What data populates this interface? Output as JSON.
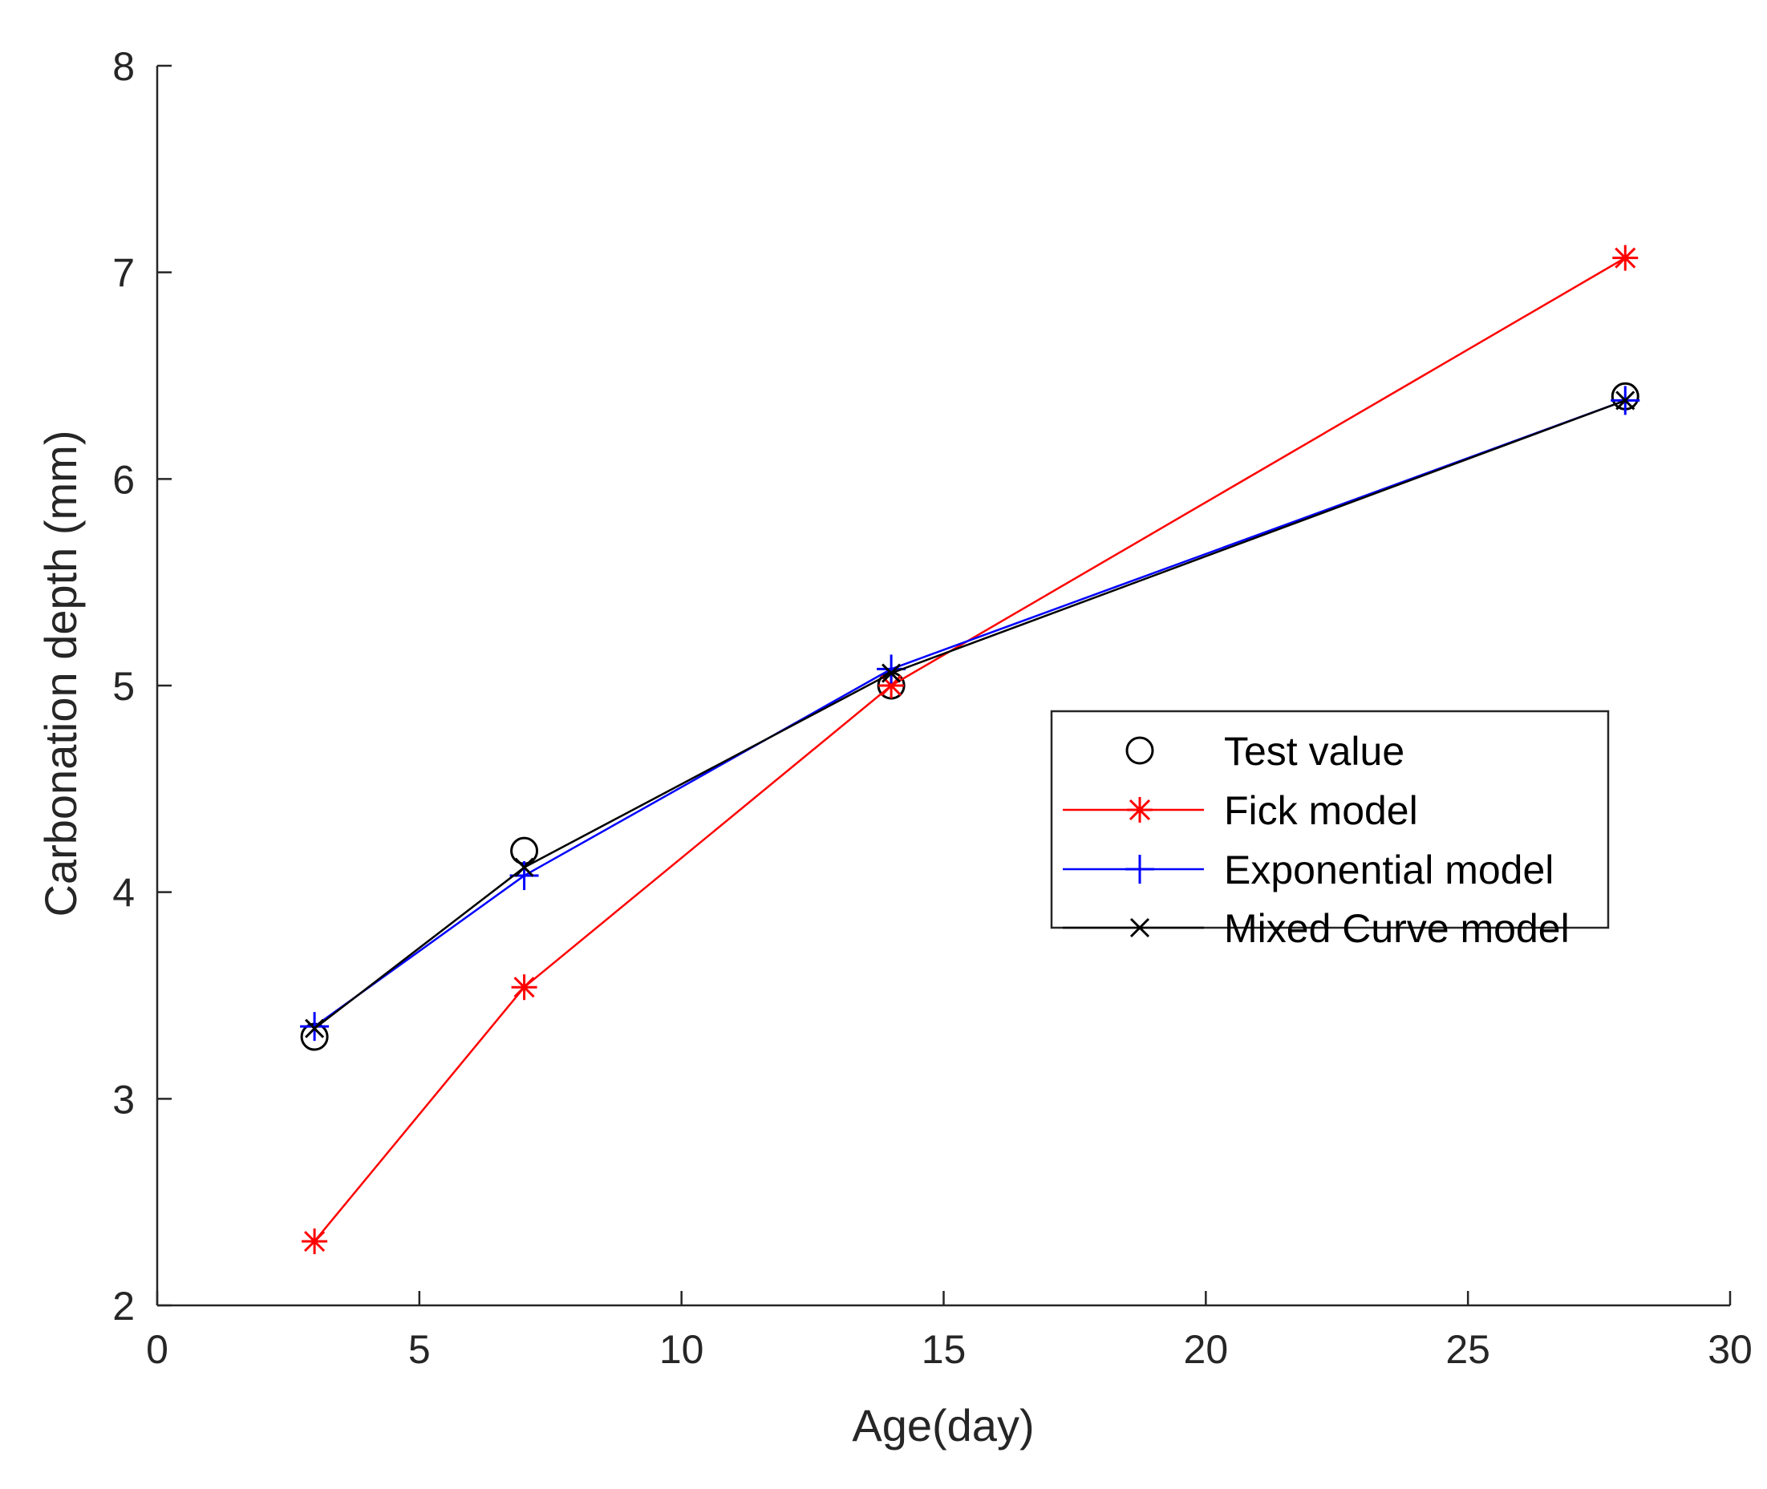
{
  "chart_data": {
    "type": "line",
    "title": "",
    "xlabel": "Age(day)",
    "ylabel": "Carbonation depth (mm)",
    "xlim": [
      0,
      30
    ],
    "ylim": [
      2,
      8
    ],
    "xticks": [
      0,
      5,
      10,
      15,
      20,
      25,
      30
    ],
    "yticks": [
      2,
      3,
      4,
      5,
      6,
      7,
      8
    ],
    "grid": false,
    "legend_position": "center-right",
    "x": [
      3,
      7,
      14,
      28
    ],
    "series": [
      {
        "name": "Test value",
        "values": [
          3.3,
          4.2,
          5.0,
          6.4
        ],
        "color": "#000000",
        "marker": "circle",
        "line": false
      },
      {
        "name": "Fick model",
        "values": [
          2.31,
          3.54,
          5.0,
          7.07
        ],
        "color": "#ff0000",
        "marker": "asterisk",
        "line": true
      },
      {
        "name": "Exponential model",
        "values": [
          3.35,
          4.08,
          5.08,
          6.38
        ],
        "color": "#0000ff",
        "marker": "plus",
        "line": true
      },
      {
        "name": "Mixed Curve model",
        "values": [
          3.34,
          4.12,
          5.06,
          6.38
        ],
        "color": "#000000",
        "marker": "cross",
        "line": true
      }
    ]
  }
}
